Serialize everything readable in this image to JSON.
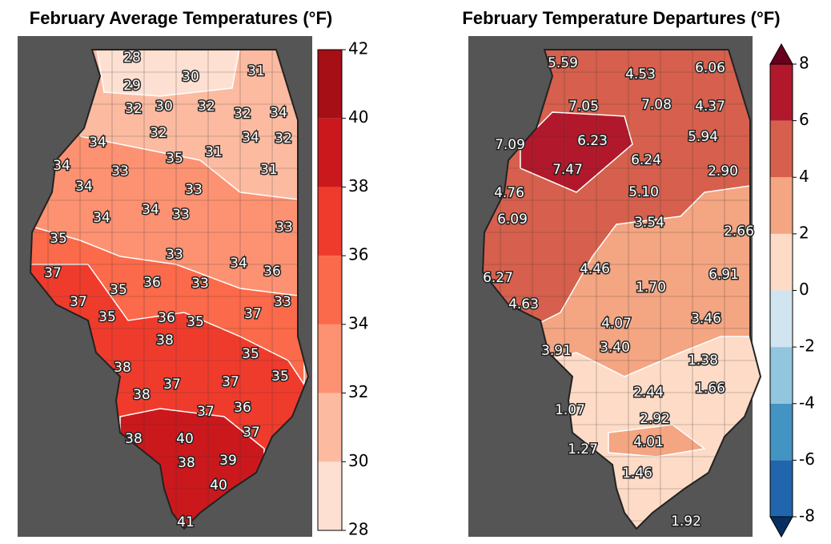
{
  "maps": [
    {
      "title": "February Average Temperatures (°F)",
      "station_labels": [
        "28",
        "29",
        "30",
        "31",
        "32",
        "30",
        "32",
        "32",
        "34",
        "32",
        "34",
        "32",
        "34",
        "35",
        "31",
        "34",
        "33",
        "31",
        "34",
        "33",
        "34",
        "34",
        "33",
        "33",
        "35",
        "33",
        "34",
        "36",
        "37",
        "35",
        "36",
        "33",
        "37",
        "33",
        "35",
        "36",
        "35",
        "37",
        "38",
        "35",
        "38",
        "37",
        "37",
        "35",
        "38",
        "37",
        "36",
        "37",
        "38",
        "40",
        "38",
        "39",
        "40",
        "41"
      ],
      "colorbar": {
        "ticks": [
          28,
          30,
          32,
          34,
          36,
          38,
          40,
          42
        ],
        "colors": [
          "#fee0d2",
          "#fcbba1",
          "#fc9272",
          "#fb6a4a",
          "#ef3b2c",
          "#cb181d",
          "#a50f15"
        ]
      }
    },
    {
      "title": "February Temperature Departures (°F)",
      "station_labels": [
        "5.59",
        "4.53",
        "6.06",
        "7.05",
        "7.08",
        "4.37",
        "7.09",
        "6.23",
        "5.94",
        "6.24",
        "7.47",
        "2.90",
        "4.76",
        "5.10",
        "6.09",
        "3.54",
        "2.66",
        "4.46",
        "6.27",
        "6.91",
        "1.70",
        "4.63",
        "3.46",
        "4.07",
        "3.40",
        "3.91",
        "1.38",
        "1.66",
        "2.44",
        "1.07",
        "2.92",
        "4.01",
        "1.27",
        "1.46",
        "1.92"
      ],
      "colorbar": {
        "ticks": [
          -8,
          -6,
          -4,
          -2,
          0,
          2,
          4,
          6,
          8
        ],
        "colors": [
          "#2166ac",
          "#4393c3",
          "#92c5de",
          "#d1e5f0",
          "#fddbc7",
          "#f4a582",
          "#d6604d",
          "#b2182b"
        ],
        "extend_colors": [
          "#053061",
          "#67001f"
        ]
      }
    }
  ]
}
